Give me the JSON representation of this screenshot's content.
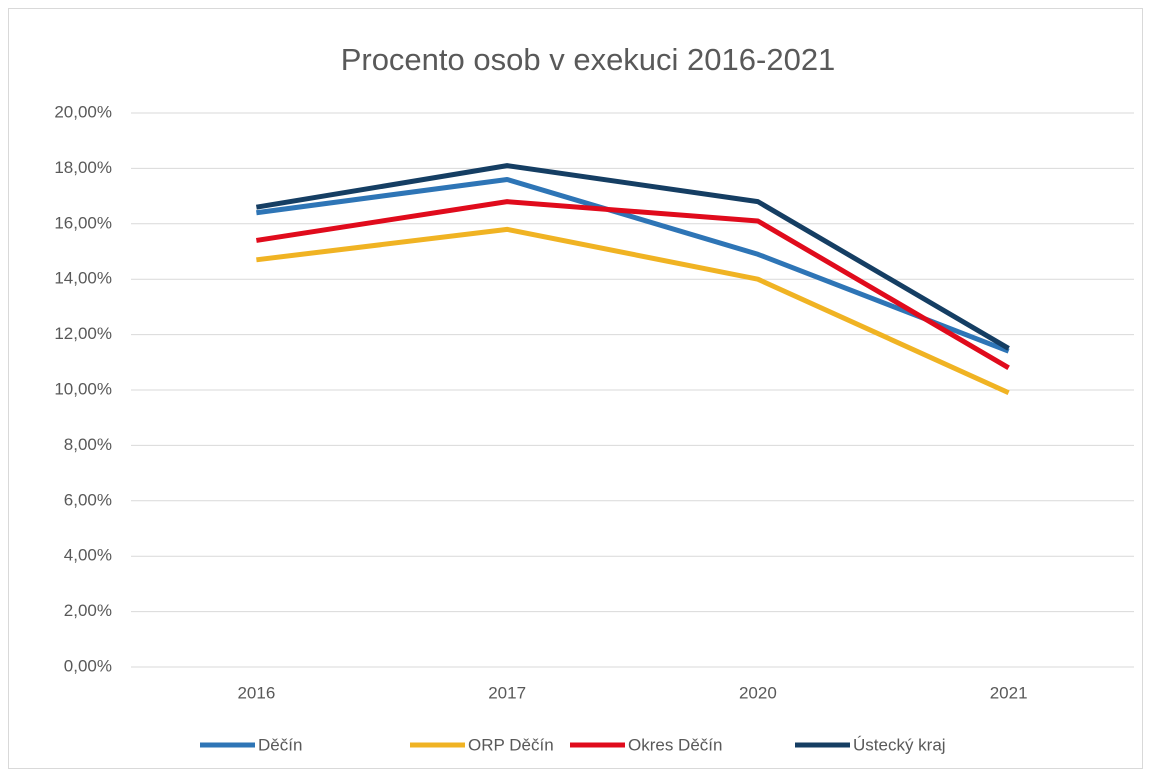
{
  "chart_data": {
    "type": "line",
    "title": "Procento osob v exekuci 2016-2021",
    "categories": [
      "2016",
      "2017",
      "2020",
      "2021"
    ],
    "series": [
      {
        "name": "Děčín",
        "color": "#2e75b6",
        "values": [
          16.4,
          17.6,
          14.9,
          11.4
        ]
      },
      {
        "name": "ORP Děčín",
        "color": "#f0b323",
        "values": [
          14.7,
          15.8,
          14.0,
          9.9
        ]
      },
      {
        "name": "Okres Děčín",
        "color": "#e00b1c",
        "values": [
          15.4,
          16.8,
          16.1,
          10.8
        ]
      },
      {
        "name": "Ústecký kraj",
        "color": "#153e63",
        "values": [
          16.6,
          18.1,
          16.8,
          11.5
        ]
      }
    ],
    "ylim": [
      0,
      20
    ],
    "yticks": [
      {
        "value": 0,
        "label": "0,00%"
      },
      {
        "value": 2,
        "label": "2,00%"
      },
      {
        "value": 4,
        "label": "4,00%"
      },
      {
        "value": 6,
        "label": "6,00%"
      },
      {
        "value": 8,
        "label": "8,00%"
      },
      {
        "value": 10,
        "label": "10,00%"
      },
      {
        "value": 12,
        "label": "12,00%"
      },
      {
        "value": 14,
        "label": "14,00%"
      },
      {
        "value": 16,
        "label": "16,00%"
      },
      {
        "value": 18,
        "label": "18,00%"
      },
      {
        "value": 20,
        "label": "20,00%"
      }
    ],
    "grid": true,
    "legend": "bottom"
  }
}
